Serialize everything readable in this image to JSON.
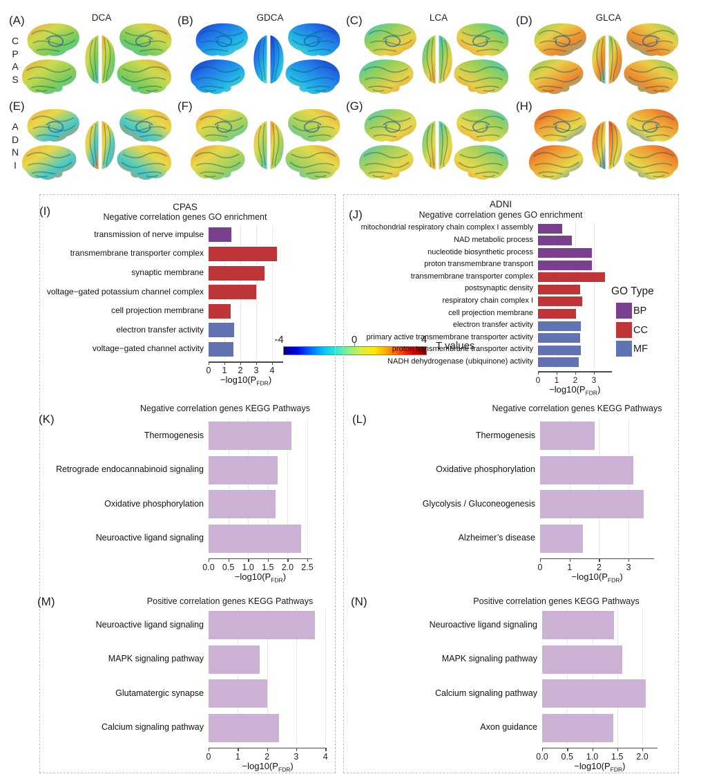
{
  "colors": {
    "bp": "#7b3f8f",
    "cc": "#be3437",
    "mf": "#6273b4",
    "kegg": "#cbb2d5",
    "grid": "#e7e7e7",
    "axis": "#4a4a4a"
  },
  "colorbar": {
    "min": "-4",
    "mid": "0",
    "max": "4",
    "label": "T values",
    "gradient": [
      "#00007f",
      "#0000e8",
      "#0060ff",
      "#00c0f8",
      "#30e8d8",
      "#88f088",
      "#d8f040",
      "#ffe800",
      "#ffa000",
      "#ff4800",
      "#d00000",
      "#800000"
    ]
  },
  "brain_figure": {
    "rows": [
      {
        "label": "CPAS",
        "panels": [
          {
            "letter": "(A)",
            "method": "DCA",
            "palette": [
              "#f0a830",
              "#cfd94e",
              "#7ccb5a",
              "#3ec6c0"
            ]
          },
          {
            "letter": "(B)",
            "method": "GDCA",
            "palette": [
              "#1535c8",
              "#2277e8",
              "#23b5e8",
              "#62dec2"
            ]
          },
          {
            "letter": "(C)",
            "method": "LCA",
            "palette": [
              "#38c4cf",
              "#8fd05e",
              "#e8cf48",
              "#ef9434"
            ]
          },
          {
            "letter": "(D)",
            "method": "GLCA",
            "palette": [
              "#7ccb5a",
              "#e8cf48",
              "#ef8a2e",
              "#38c4cf"
            ]
          }
        ]
      },
      {
        "label": "ADNI",
        "panels": [
          {
            "letter": "(E)",
            "method": "",
            "palette": [
              "#f0b035",
              "#e8d84a",
              "#46c8c8",
              "#f08030"
            ]
          },
          {
            "letter": "(F)",
            "method": "",
            "palette": [
              "#ef9434",
              "#e8d84a",
              "#9fd05e",
              "#46c8c8"
            ]
          },
          {
            "letter": "(G)",
            "method": "",
            "palette": [
              "#46c8c8",
              "#9fd05e",
              "#e8d84a",
              "#ef9434"
            ]
          },
          {
            "letter": "(H)",
            "method": "",
            "palette": [
              "#e04a2a",
              "#f09a30",
              "#e8d84a",
              "#2d7fe0"
            ]
          }
        ]
      }
    ]
  },
  "legend": {
    "title": "GO Type",
    "items": [
      {
        "label": "BP",
        "type": "bp"
      },
      {
        "label": "CC",
        "type": "cc"
      },
      {
        "label": "MF",
        "type": "mf"
      }
    ]
  },
  "chart_data": [
    {
      "panel": "I",
      "letter": "(I)",
      "type": "bar",
      "orientation": "horizontal",
      "dataset_title": "CPAS",
      "title": "Negative correlation genes GO enrichment",
      "categories": [
        "transmission of nerve impulse",
        "transmembrane transporter complex",
        "synaptic membrane",
        "voltage−gated potassium channel complex",
        "cell projection membrane",
        "electron transfer activity",
        "voltage−gated channel activity"
      ],
      "values": [
        1.45,
        4.3,
        3.5,
        3.0,
        1.4,
        1.6,
        1.55
      ],
      "go_types": [
        "bp",
        "cc",
        "cc",
        "cc",
        "cc",
        "mf",
        "mf"
      ],
      "xticks": [
        "0",
        "1",
        "2",
        "3",
        "4"
      ],
      "xtick_values": [
        0,
        1,
        2,
        3,
        4
      ],
      "xlim": [
        0,
        4.7
      ],
      "xlabel": {
        "pre": "−log10(P",
        "sub": "FDR",
        "post": ")"
      },
      "grid": true
    },
    {
      "panel": "J",
      "letter": "(J)",
      "type": "bar",
      "orientation": "horizontal",
      "dataset_title": "ADNI",
      "title": "Negative correlation genes GO enrichment",
      "categories": [
        "mitochondrial respiratory chain complex I assembly",
        "NAD metabolic process",
        "nucleotide biosynthetic process",
        "proton transmembrane transport",
        "transmembrane transporter complex",
        "postsynaptic density",
        "respiratory chain complex I",
        "cell projection membrane",
        "electron transfer activity",
        "primary active transmembrane transporter activity",
        "proton transmembrane transporter activity",
        "NADH dehydrogenase (ubiquinone) activity"
      ],
      "values": [
        1.3,
        1.8,
        2.9,
        2.9,
        3.6,
        2.25,
        2.35,
        2.05,
        2.3,
        2.25,
        2.3,
        2.2
      ],
      "go_types": [
        "bp",
        "bp",
        "bp",
        "bp",
        "cc",
        "cc",
        "cc",
        "cc",
        "mf",
        "mf",
        "mf",
        "mf"
      ],
      "xticks": [
        "0",
        "1",
        "2",
        "3"
      ],
      "xtick_values": [
        0,
        1,
        2,
        3
      ],
      "xlim": [
        0,
        3.95
      ],
      "xlabel": {
        "pre": "−log10(P",
        "sub": "FDR",
        "post": ")"
      },
      "grid": true,
      "legend_position": "right"
    },
    {
      "panel": "K",
      "letter": "(K)",
      "type": "bar",
      "orientation": "horizontal",
      "title": "Negative correlation genes KEGG Pathways",
      "categories": [
        "Thermogenesis",
        "Retrograde endocannabinoid signaling",
        "Oxidative phosphorylation",
        "Neuroactive ligand signaling"
      ],
      "values": [
        2.1,
        1.75,
        1.7,
        2.35
      ],
      "bar_color": "kegg",
      "xticks": [
        "0.0",
        "0.5",
        "1.0",
        "1.5",
        "2.0",
        "2.5"
      ],
      "xtick_values": [
        0,
        0.5,
        1,
        1.5,
        2,
        2.5
      ],
      "xlim": [
        0,
        2.62
      ],
      "xlabel": {
        "pre": "−log10(P",
        "sub": "FDR",
        "post": ")"
      },
      "grid": true
    },
    {
      "panel": "L",
      "letter": "(L)",
      "type": "bar",
      "orientation": "horizontal",
      "title": "Negative correlation genes KEGG Pathways",
      "categories": [
        "Thermogenesis",
        "Oxidative phosphorylation",
        "Glycolysis / Gluconeogenesis",
        "Alzheimer’s disease"
      ],
      "values": [
        1.85,
        3.15,
        3.5,
        1.45
      ],
      "bar_color": "kegg",
      "xticks": [
        "0",
        "1",
        "2",
        "3"
      ],
      "xtick_values": [
        0,
        1,
        2,
        3
      ],
      "xlim": [
        0,
        3.87
      ],
      "xlabel": {
        "pre": "−log10(P",
        "sub": "FDR",
        "post": ")"
      },
      "grid": true
    },
    {
      "panel": "M",
      "letter": "(M)",
      "type": "bar",
      "orientation": "horizontal",
      "title": "Positive correlation genes KEGG Pathways",
      "categories": [
        "Neuroactive ligand signaling",
        "MAPK signaling pathway",
        "Glutamatergic synapse",
        "Calcium signaling pathway"
      ],
      "values": [
        3.65,
        1.75,
        2.0,
        2.4
      ],
      "bar_color": "kegg",
      "xticks": [
        "0",
        "1",
        "2",
        "3",
        "4"
      ],
      "xtick_values": [
        0,
        1,
        2,
        3,
        4
      ],
      "xlim": [
        0,
        4.05
      ],
      "xlabel": {
        "pre": "−log10(P",
        "sub": "FDR",
        "post": ")"
      },
      "grid": true
    },
    {
      "panel": "N",
      "letter": "(N)",
      "type": "bar",
      "orientation": "horizontal",
      "title": "Positive correlation genes KEGG Pathways",
      "categories": [
        "Neuroactive ligand signaling",
        "MAPK signaling pathway",
        "Calcium signaling pathway",
        "Axon guidance"
      ],
      "values": [
        1.43,
        1.6,
        2.07,
        1.42
      ],
      "bar_color": "kegg",
      "xticks": [
        "0.0",
        "0.5",
        "1.0",
        "1.5",
        "2.0"
      ],
      "xtick_values": [
        0,
        0.5,
        1,
        1.5,
        2
      ],
      "xlim": [
        0,
        2.3
      ],
      "xlabel": {
        "pre": "−log10(P",
        "sub": "FDR",
        "post": ")"
      },
      "grid": true
    }
  ]
}
